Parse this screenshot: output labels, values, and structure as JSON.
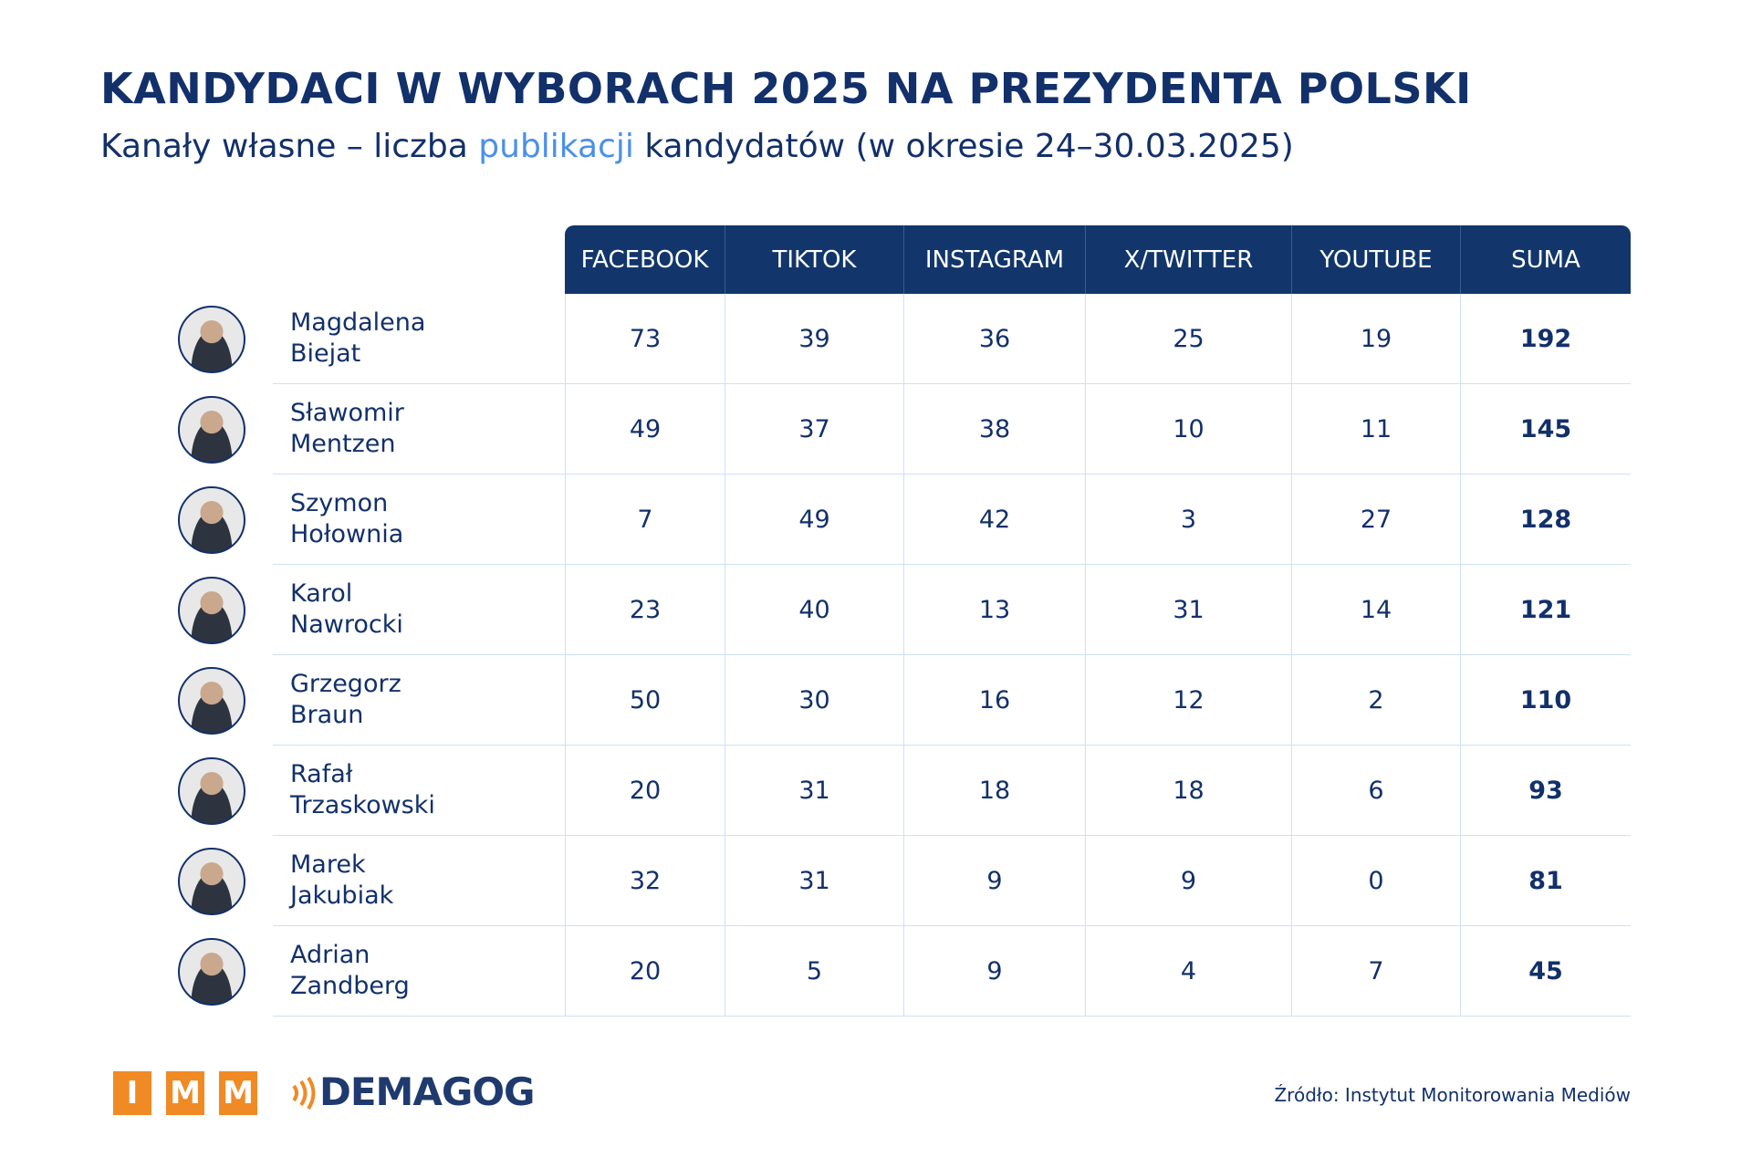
{
  "header": {
    "title": "KANDYDACI W WYBORACH 2025 NA PREZYDENTA POLSKI",
    "subtitle_parts": [
      "Kanały własne – liczba ",
      "publikacji",
      " kandydatów (w okresie 24–30.03.2025)"
    ]
  },
  "table": {
    "columns": [
      "FACEBOOK",
      "TIKTOK",
      "INSTAGRAM",
      "X/TWITTER",
      "YOUTUBE",
      "SUMA"
    ],
    "rows": [
      {
        "first_name": "Magdalena",
        "last_name": "Biejat",
        "values": [
          73,
          39,
          36,
          25,
          19,
          192
        ]
      },
      {
        "first_name": "Sławomir",
        "last_name": "Mentzen",
        "values": [
          49,
          37,
          38,
          10,
          11,
          145
        ]
      },
      {
        "first_name": "Szymon",
        "last_name": "Hołownia",
        "values": [
          7,
          49,
          42,
          3,
          27,
          128
        ]
      },
      {
        "first_name": "Karol",
        "last_name": "Nawrocki",
        "values": [
          23,
          40,
          13,
          31,
          14,
          121
        ]
      },
      {
        "first_name": "Grzegorz",
        "last_name": "Braun",
        "values": [
          50,
          30,
          16,
          12,
          2,
          110
        ]
      },
      {
        "first_name": "Rafał",
        "last_name": "Trzaskowski",
        "values": [
          20,
          31,
          18,
          18,
          6,
          93
        ]
      },
      {
        "first_name": "Marek",
        "last_name": "Jakubiak",
        "values": [
          32,
          31,
          9,
          9,
          0,
          81
        ]
      },
      {
        "first_name": "Adrian",
        "last_name": "Zandberg",
        "values": [
          20,
          5,
          9,
          4,
          7,
          45
        ]
      }
    ]
  },
  "footer": {
    "logo_letters": [
      "I",
      "M",
      "M"
    ],
    "logo_text": "DEMAGOG",
    "source": "Źródło: Instytut Monitorowania Mediów"
  }
}
